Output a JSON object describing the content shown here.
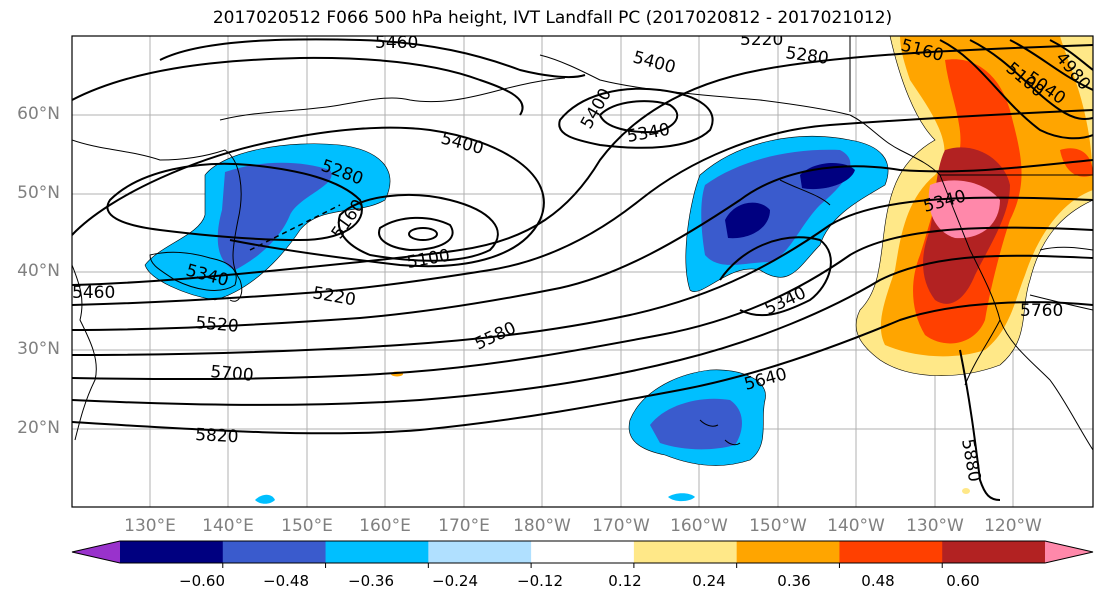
{
  "title": "2017020512 F066 500 hPa height, IVT Landfall PC (2017020812 - 2017021012)",
  "lat_labels": [
    "60°N",
    "50°N",
    "40°N",
    "30°N",
    "20°N"
  ],
  "lon_labels": [
    "130°E",
    "140°E",
    "150°E",
    "160°E",
    "170°E",
    "180°W",
    "170°W",
    "160°W",
    "150°W",
    "140°W",
    "130°W",
    "120°W"
  ],
  "colorbar": {
    "tick_labels": [
      "−0.60",
      "−0.48",
      "−0.36",
      "−0.24",
      "−0.12",
      "0.12",
      "0.24",
      "0.36",
      "0.48",
      "0.60"
    ],
    "colors": [
      "#9932cc",
      "#000080",
      "#3a5bcd",
      "#00bfff",
      "#b0e0ff",
      "#ffffff",
      "#ffe888",
      "#ffa500",
      "#ff4000",
      "#b22222",
      "#ff88aa"
    ]
  },
  "contour_labels": [
    "5400",
    "5460",
    "5220",
    "5280",
    "5160",
    "5100",
    "5340",
    "5400",
    "5340",
    "5280",
    "5220",
    "5160",
    "5040",
    "4980",
    "5100",
    "5340",
    "5220",
    "5460",
    "5520",
    "5580",
    "5640",
    "5700",
    "5760",
    "5820",
    "5880",
    "5340",
    "5400"
  ],
  "pc_colors": {
    "neg_light": "#b0e0ff",
    "neg1": "#00bfff",
    "neg2": "#3a5bcd",
    "neg3": "#000080",
    "pos1": "#ffe888",
    "pos2": "#ffa500",
    "pos3": "#ff4000",
    "pos4": "#b22222",
    "pos5": "#ff88aa"
  }
}
